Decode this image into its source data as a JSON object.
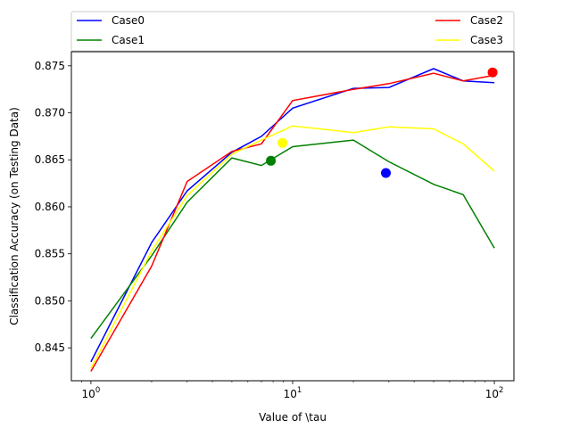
{
  "chart_data": {
    "type": "line",
    "xlabel": "Value of \\tau",
    "ylabel": "Classification Accuracy (on Testing Data)",
    "xscale": "log",
    "xlim": [
      0.8,
      125
    ],
    "ylim": [
      0.8415,
      0.8765
    ],
    "grid": false,
    "legend_position": "above",
    "x_ticks": [
      {
        "value": 1,
        "base": "10",
        "exp": "0"
      },
      {
        "value": 10,
        "base": "10",
        "exp": "1"
      },
      {
        "value": 100,
        "base": "10",
        "exp": "2"
      }
    ],
    "y_ticks": [
      {
        "value": 0.845,
        "label": "0.845"
      },
      {
        "value": 0.85,
        "label": "0.850"
      },
      {
        "value": 0.855,
        "label": "0.855"
      },
      {
        "value": 0.86,
        "label": "0.860"
      },
      {
        "value": 0.865,
        "label": "0.865"
      },
      {
        "value": 0.87,
        "label": "0.870"
      },
      {
        "value": 0.875,
        "label": "0.875"
      }
    ],
    "series": [
      {
        "name": "Case0",
        "color": "#0000ff",
        "x": [
          1,
          2,
          3,
          5,
          7,
          10,
          20,
          30,
          50,
          70,
          100
        ],
        "y": [
          0.8435,
          0.8562,
          0.8617,
          0.8658,
          0.8675,
          0.8705,
          0.8726,
          0.8727,
          0.8747,
          0.8734,
          0.8732
        ],
        "marker": {
          "x": 29,
          "y": 0.8636
        }
      },
      {
        "name": "Case1",
        "color": "#008000",
        "x": [
          1,
          2,
          3,
          5,
          7,
          10,
          20,
          30,
          50,
          70,
          100
        ],
        "y": [
          0.846,
          0.8548,
          0.8605,
          0.8652,
          0.8644,
          0.8664,
          0.8671,
          0.8648,
          0.8624,
          0.8613,
          0.8556
        ],
        "marker": {
          "x": 7.8,
          "y": 0.8649
        }
      },
      {
        "name": "Case2",
        "color": "#ff0000",
        "x": [
          1,
          2,
          3,
          5,
          7,
          10,
          20,
          30,
          50,
          70,
          100
        ],
        "y": [
          0.8425,
          0.8537,
          0.8627,
          0.8659,
          0.8667,
          0.8713,
          0.8725,
          0.8731,
          0.8742,
          0.8734,
          0.874
        ],
        "marker": {
          "x": 98,
          "y": 0.8743
        }
      },
      {
        "name": "Case3",
        "color": "#ffff00",
        "x": [
          1,
          2,
          3,
          5,
          7,
          10,
          20,
          30,
          50,
          70,
          100
        ],
        "y": [
          0.8428,
          0.8553,
          0.8612,
          0.8656,
          0.8671,
          0.8686,
          0.8679,
          0.8685,
          0.8683,
          0.8667,
          0.8638
        ],
        "marker": {
          "x": 8.9,
          "y": 0.8668
        }
      }
    ]
  }
}
